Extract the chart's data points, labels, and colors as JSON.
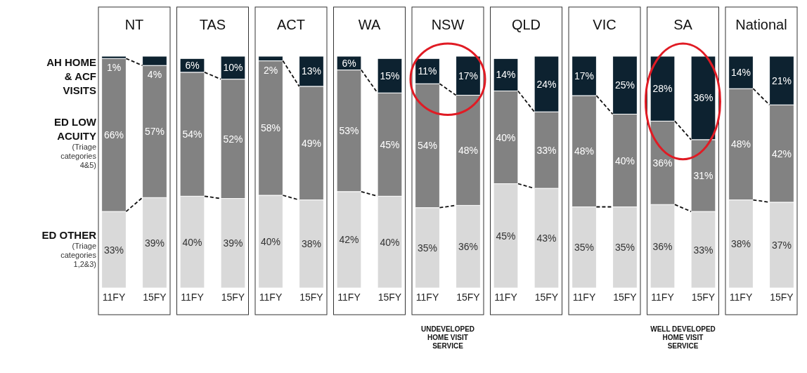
{
  "chart_data": [
    {
      "type": "bar",
      "title": "NT",
      "categories": [
        "11FY",
        "15FY"
      ],
      "stacked": true,
      "tick_labels": "x",
      "series": [
        {
          "name": "ED OTHER (Triage categories 1,2&3)",
          "color": "#d9d9d9",
          "values": [
            33,
            39
          ],
          "value_labels": [
            "33%",
            "39%"
          ]
        },
        {
          "name": "ED LOW ACUITY (Triage categories 4&5)",
          "color": "#828282",
          "values": [
            66,
            57
          ],
          "value_labels": [
            "66%",
            "57%"
          ]
        },
        {
          "name": "AH HOME & ACF VISITS",
          "color": "#0d2230",
          "values": [
            1,
            4
          ],
          "value_labels": [
            "1%",
            "4%"
          ]
        }
      ]
    },
    {
      "type": "bar",
      "title": "TAS",
      "categories": [
        "11FY",
        "15FY"
      ],
      "stacked": true,
      "tick_labels": "x",
      "series": [
        {
          "color": "#d9d9d9",
          "values": [
            40,
            39
          ],
          "value_labels": [
            "40%",
            "39%"
          ]
        },
        {
          "color": "#828282",
          "values": [
            54,
            52
          ],
          "value_labels": [
            "54%",
            "52%"
          ]
        },
        {
          "color": "#0d2230",
          "values": [
            6,
            10
          ],
          "value_labels": [
            "6%",
            "10%"
          ]
        }
      ]
    },
    {
      "type": "bar",
      "title": "ACT",
      "categories": [
        "11FY",
        "15FY"
      ],
      "stacked": true,
      "tick_labels": "x",
      "series": [
        {
          "color": "#d9d9d9",
          "values": [
            40,
            38
          ],
          "value_labels": [
            "40%",
            "38%"
          ]
        },
        {
          "color": "#828282",
          "values": [
            58,
            49
          ],
          "value_labels": [
            "58%",
            "49%"
          ]
        },
        {
          "color": "#0d2230",
          "values": [
            2,
            13
          ],
          "value_labels": [
            "2%",
            "13%"
          ]
        }
      ]
    },
    {
      "type": "bar",
      "title": "WA",
      "categories": [
        "11FY",
        "15FY"
      ],
      "stacked": true,
      "tick_labels": "x",
      "series": [
        {
          "color": "#d9d9d9",
          "values": [
            42,
            40
          ],
          "value_labels": [
            "42%",
            "40%"
          ]
        },
        {
          "color": "#828282",
          "values": [
            53,
            45
          ],
          "value_labels": [
            "53%",
            "45%"
          ]
        },
        {
          "color": "#0d2230",
          "values": [
            6,
            15
          ],
          "value_labels": [
            "6%",
            "15%"
          ]
        }
      ]
    },
    {
      "type": "bar",
      "title": "NSW",
      "categories": [
        "11FY",
        "15FY"
      ],
      "stacked": true,
      "tick_labels": "x",
      "annotations": [
        "UNDEVELOPED HOME VISIT SERVICE"
      ],
      "series": [
        {
          "color": "#d9d9d9",
          "values": [
            35,
            36
          ],
          "value_labels": [
            "35%",
            "36%"
          ]
        },
        {
          "color": "#828282",
          "values": [
            54,
            48
          ],
          "value_labels": [
            "54%",
            "48%"
          ]
        },
        {
          "color": "#0d2230",
          "values": [
            11,
            17
          ],
          "value_labels": [
            "11%",
            "17%"
          ]
        }
      ]
    },
    {
      "type": "bar",
      "title": "QLD",
      "categories": [
        "11FY",
        "15FY"
      ],
      "stacked": true,
      "tick_labels": "x",
      "series": [
        {
          "color": "#d9d9d9",
          "values": [
            45,
            43
          ],
          "value_labels": [
            "45%",
            "43%"
          ]
        },
        {
          "color": "#828282",
          "values": [
            40,
            33
          ],
          "value_labels": [
            "40%",
            "33%"
          ]
        },
        {
          "color": "#0d2230",
          "values": [
            14,
            24
          ],
          "value_labels": [
            "14%",
            "24%"
          ]
        }
      ]
    },
    {
      "type": "bar",
      "title": "VIC",
      "categories": [
        "11FY",
        "15FY"
      ],
      "stacked": true,
      "tick_labels": "x",
      "series": [
        {
          "color": "#d9d9d9",
          "values": [
            35,
            35
          ],
          "value_labels": [
            "35%",
            "35%"
          ]
        },
        {
          "color": "#828282",
          "values": [
            48,
            40
          ],
          "value_labels": [
            "48%",
            "40%"
          ]
        },
        {
          "color": "#0d2230",
          "values": [
            17,
            25
          ],
          "value_labels": [
            "17%",
            "25%"
          ]
        }
      ]
    },
    {
      "type": "bar",
      "title": "SA",
      "categories": [
        "11FY",
        "15FY"
      ],
      "stacked": true,
      "tick_labels": "x",
      "annotations": [
        "WELL DEVELOPED HOME VISIT SERVICE"
      ],
      "series": [
        {
          "color": "#d9d9d9",
          "values": [
            36,
            33
          ],
          "value_labels": [
            "36%",
            "33%"
          ]
        },
        {
          "color": "#828282",
          "values": [
            36,
            31
          ],
          "value_labels": [
            "36%",
            "31%"
          ]
        },
        {
          "color": "#0d2230",
          "values": [
            28,
            36
          ],
          "value_labels": [
            "28%",
            "36%"
          ]
        }
      ]
    },
    {
      "type": "bar",
      "title": "National",
      "categories": [
        "11FY",
        "15FY"
      ],
      "stacked": true,
      "tick_labels": "x",
      "series": [
        {
          "color": "#d9d9d9",
          "values": [
            38,
            37
          ],
          "value_labels": [
            "38%",
            "37%"
          ]
        },
        {
          "color": "#828282",
          "values": [
            48,
            42
          ],
          "value_labels": [
            "48%",
            "42%"
          ]
        },
        {
          "color": "#0d2230",
          "values": [
            14,
            21
          ],
          "value_labels": [
            "14%",
            "21%"
          ]
        }
      ]
    }
  ]
}
